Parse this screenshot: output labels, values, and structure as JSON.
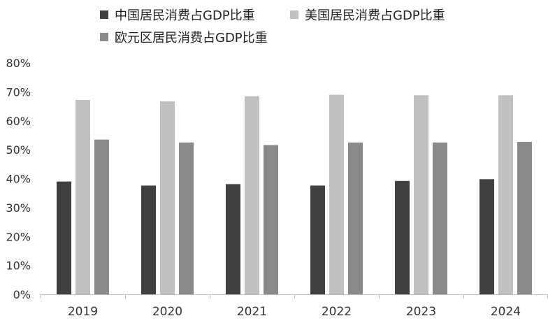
{
  "chart_data": {
    "type": "bar",
    "categories": [
      "2019",
      "2020",
      "2021",
      "2022",
      "2023",
      "2024"
    ],
    "series": [
      {
        "name": "中国居民消费占GDP比重",
        "color": "#404040",
        "values": [
          39.0,
          37.6,
          38.1,
          37.6,
          39.2,
          39.8
        ]
      },
      {
        "name": "美国居民消费占GDP比重",
        "color": "#c0c0c0",
        "values": [
          67.2,
          66.7,
          68.5,
          69.0,
          68.8,
          68.8
        ]
      },
      {
        "name": "欧元区居民消费占GDP比重",
        "color": "#8a8a8a",
        "values": [
          53.5,
          52.5,
          51.6,
          52.5,
          52.5,
          52.7
        ]
      }
    ],
    "yticks": [
      "0%",
      "10%",
      "20%",
      "30%",
      "40%",
      "50%",
      "60%",
      "70%",
      "80%"
    ],
    "ylim": [
      0,
      80
    ],
    "legend_position": "top-left",
    "grid": false,
    "title": "",
    "xlabel": "",
    "ylabel": ""
  }
}
